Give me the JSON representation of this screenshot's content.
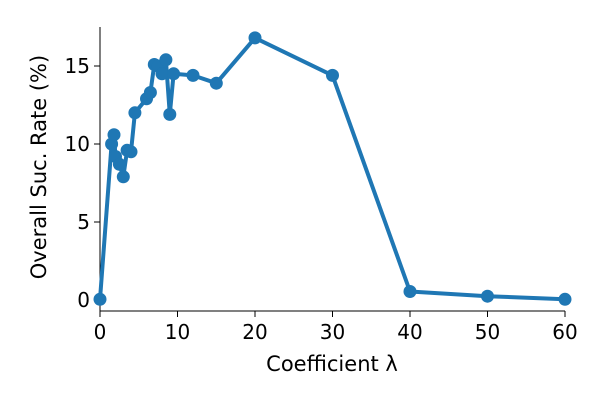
{
  "chart_data": {
    "type": "line",
    "title": "",
    "xlabel": "Coefficient λ",
    "ylabel": "Overall Suc. Rate (%)",
    "xlim": [
      0,
      60
    ],
    "ylim": [
      -0.7,
      17.5
    ],
    "xticks": [
      0,
      10,
      20,
      30,
      40,
      50,
      60
    ],
    "yticks": [
      0,
      5,
      10,
      15
    ],
    "grid": false,
    "color": "#1f77b4",
    "series": [
      {
        "x": [
          0,
          1.5,
          1.8,
          2.0,
          2.5,
          3.0,
          3.5,
          4.0,
          4.5,
          6.0,
          6.5,
          7.0,
          7.5,
          8.0,
          8.5,
          9.0,
          9.5,
          12.0,
          15.0,
          20.0,
          30.0,
          40.0,
          50.0,
          60.0
        ],
        "y": [
          0.05,
          10.0,
          10.6,
          9.2,
          8.7,
          7.9,
          9.6,
          9.5,
          12.0,
          12.9,
          13.3,
          15.1,
          15.0,
          14.5,
          15.4,
          11.9,
          14.5,
          14.4,
          13.9,
          16.8,
          14.4,
          0.55,
          0.25,
          0.05
        ]
      }
    ]
  }
}
